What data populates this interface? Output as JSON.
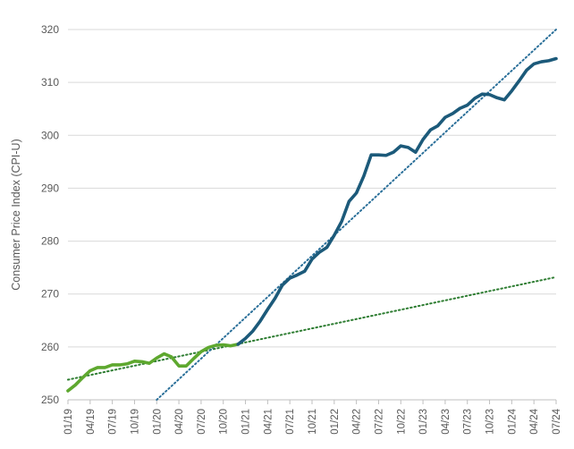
{
  "chart_data": {
    "type": "line",
    "title": "",
    "xlabel": "",
    "ylabel": "Consumer Price Index (CPI-U)",
    "ylim": [
      250,
      320
    ],
    "yticks": [
      250,
      260,
      270,
      280,
      290,
      300,
      310,
      320
    ],
    "grid": "horizontal",
    "legend": "none",
    "x_tick_labels": [
      "01/19",
      "04/19",
      "07/19",
      "10/19",
      "01/20",
      "04/20",
      "07/20",
      "10/20",
      "01/21",
      "04/21",
      "07/21",
      "10/21",
      "01/22",
      "04/22",
      "07/22",
      "10/22",
      "01/23",
      "04/23",
      "07/23",
      "10/23",
      "01/24",
      "04/24",
      "07/24"
    ],
    "series": [
      {
        "key": "pre",
        "color": "#5ea82f",
        "start": "01/19",
        "values": [
          251.7,
          252.8,
          254.2,
          255.5,
          256.1,
          256.1,
          256.6,
          256.6,
          256.8,
          257.3,
          257.2,
          256.9,
          257.9,
          258.7,
          258.1,
          256.4,
          256.4,
          257.8,
          259.1,
          259.9,
          260.3,
          260.4,
          260.2,
          260.5
        ]
      },
      {
        "key": "post",
        "color": "#1c5a7a",
        "start": "12/20",
        "values": [
          260.5,
          261.6,
          263.0,
          264.9,
          267.1,
          269.2,
          271.7,
          273.0,
          273.6,
          274.3,
          276.6,
          277.9,
          278.8,
          281.1,
          283.7,
          287.5,
          289.1,
          292.3,
          296.3,
          296.3,
          296.2,
          296.8,
          298.0,
          297.7,
          296.8,
          299.2,
          301.0,
          301.8,
          303.4,
          304.1,
          305.1,
          305.7,
          307.0,
          307.8,
          307.7,
          307.1,
          306.7,
          308.4,
          310.3,
          312.3,
          313.5,
          313.9,
          314.1,
          314.5
        ]
      }
    ],
    "trendlines": [
      {
        "key": "pre-trend",
        "color": "#2e7d32",
        "x_from": "01/19",
        "y_from": 253.8,
        "x_to": "07/24",
        "y_to": 273.2
      },
      {
        "key": "post-trend",
        "color": "#2a6f99",
        "x_from": "01/20",
        "y_from": 250.0,
        "x_to": "07/24",
        "y_to": 320.0
      }
    ]
  }
}
